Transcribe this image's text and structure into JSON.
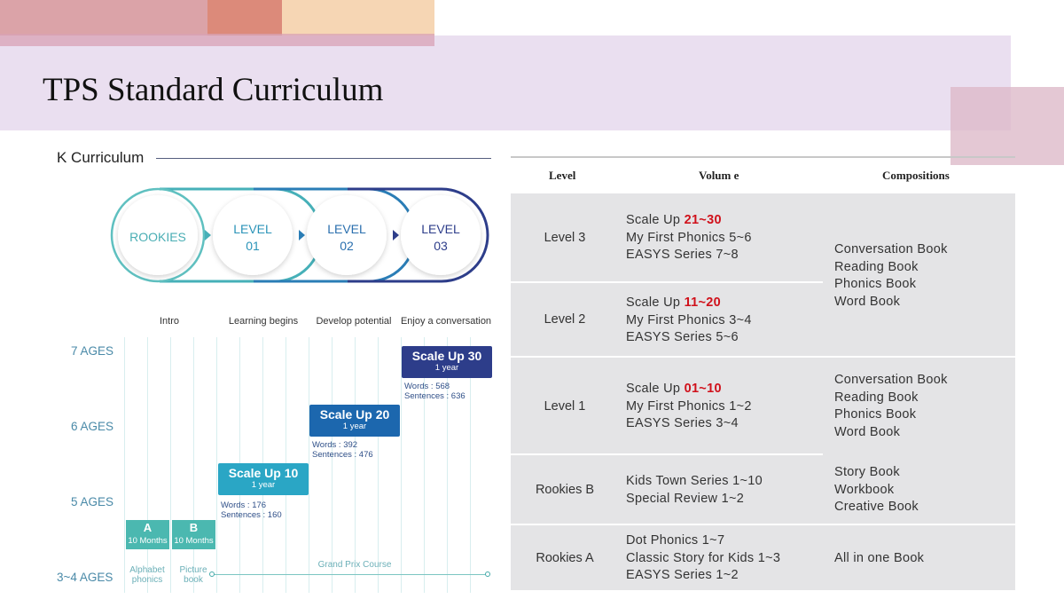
{
  "title": "TPS Standard Curriculum",
  "left": {
    "heading": "K Curriculum",
    "stages": [
      {
        "line1": "ROOKIES",
        "line2": ""
      },
      {
        "line1": "LEVEL",
        "line2": "01"
      },
      {
        "line1": "LEVEL",
        "line2": "02"
      },
      {
        "line1": "LEVEL",
        "line2": "03"
      }
    ],
    "stage_labels": [
      "Intro",
      "Learning begins",
      "Develop potential",
      "Enjoy a conversation"
    ],
    "ages": [
      "7 AGES",
      "6 AGES",
      "5 AGES",
      "3~4 AGES"
    ],
    "scale_boxes": [
      {
        "name": "Scale Up 10",
        "dur": "1 year",
        "words": "Words : 176",
        "sentences": "Sentences : 160"
      },
      {
        "name": "Scale Up 20",
        "dur": "1 year",
        "words": "Words : 392",
        "sentences": "Sentences : 476"
      },
      {
        "name": "Scale Up 30",
        "dur": "1 year",
        "words": "Words : 568",
        "sentences": "Sentences : 636"
      }
    ],
    "ab": [
      {
        "letter": "A",
        "months": "10 Months",
        "cap1": "Alphabet",
        "cap2": "phonics"
      },
      {
        "letter": "B",
        "months": "10 Months",
        "cap1": "Picture",
        "cap2": "book"
      }
    ],
    "course": "Grand Prix Course",
    "colors": {
      "teal": "#2aa6c5",
      "blue": "#1c67ae",
      "navy": "#2d3d8a",
      "mint": "#4bb8b0"
    }
  },
  "table": {
    "headers": [
      "Level",
      "Volum e",
      "Compositions"
    ],
    "rows": [
      {
        "level": "Level 3",
        "v1_pre": "Scale Up ",
        "v1_red": "21~30",
        "v2": "My First Phonics 5~6",
        "v3": "EASYS Series 7~8"
      },
      {
        "level": "Level 2",
        "v1_pre": "Scale Up ",
        "v1_red": "11~20",
        "v2": "My First Phonics 3~4",
        "v3": "EASYS Series 5~6"
      },
      {
        "level": "Level 1",
        "v1_pre": "Scale Up ",
        "v1_red": "01~10",
        "v2": "My First Phonics 1~2",
        "v3": "EASYS Series 3~4"
      },
      {
        "level": "Rookies B",
        "v1": "Kids Town Series 1~10",
        "v2": "Special Review 1~2"
      },
      {
        "level": "Rookies A",
        "v1": "Dot Phonics 1~7",
        "v2": "Classic Story for Kids 1~3",
        "v3": "EASYS Series 1~2"
      }
    ],
    "comp_a": [
      "Conversation Book",
      "Reading Book",
      "Phonics Book",
      "Word Book"
    ],
    "comp_b": [
      "Conversation Book",
      "Reading Book",
      "Phonics Book",
      "Word Book"
    ],
    "comp_c": [
      "Story Book",
      "Workbook",
      "Creative Book"
    ],
    "comp_d": "All in one Book",
    "accent_red": "#d0111b"
  }
}
